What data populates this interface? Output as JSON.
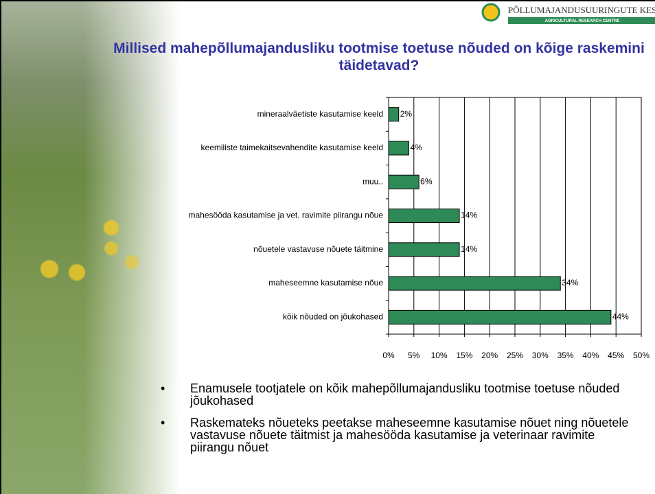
{
  "logo": {
    "name": "PÕLLUMAJANDUSUURINGUTE KESKU",
    "subtitle": "AGRICULTURAL RESEARCH CENTRE"
  },
  "chart_data": {
    "type": "hbar",
    "title": "Millised mahepõllumajandusliku tootmise toetuse nõuded on kõige raskemini täidetavad?",
    "categories": [
      "mineraalväetiste kasutamise keeld",
      "keemiliste taimekaitsevahendite kasutamise keeld",
      "muu..",
      "mahesööda kasutamise ja vet. ravimite piirangu nõue",
      "nõuetele vastavuse nõuete täitmine",
      "maheseemne kasutamise nõue",
      "kõik nõuded on jõukohased"
    ],
    "values": [
      2,
      4,
      6,
      14,
      14,
      34,
      44
    ],
    "value_labels": [
      "2%",
      "4%",
      "6%",
      "14%",
      "14%",
      "34%",
      "44%"
    ],
    "color": "#2e8b57",
    "xlim": [
      0,
      50
    ],
    "xticks": [
      {
        "value": 0,
        "label": "0%"
      },
      {
        "value": 5,
        "label": "5%"
      },
      {
        "value": 10,
        "label": "10%"
      },
      {
        "value": 15,
        "label": "15%"
      },
      {
        "value": 20,
        "label": "20%"
      },
      {
        "value": 25,
        "label": "25%"
      },
      {
        "value": 30,
        "label": "30%"
      },
      {
        "value": 35,
        "label": "35%"
      },
      {
        "value": 40,
        "label": "40%"
      },
      {
        "value": 45,
        "label": "45%"
      },
      {
        "value": 50,
        "label": "50%"
      }
    ],
    "grid": true
  },
  "bullets": [
    "Enamusele tootjatele on kõik mahepõllumajandusliku tootmise toetuse nõuded jõukohased",
    "Raskemateks nõueteks peetakse maheseemne kasutamise nõuet ning nõuetele vastavuse nõuete täitmist ja mahesööda kasutamise ja veterinaar ravimite piirangu nõuet"
  ]
}
